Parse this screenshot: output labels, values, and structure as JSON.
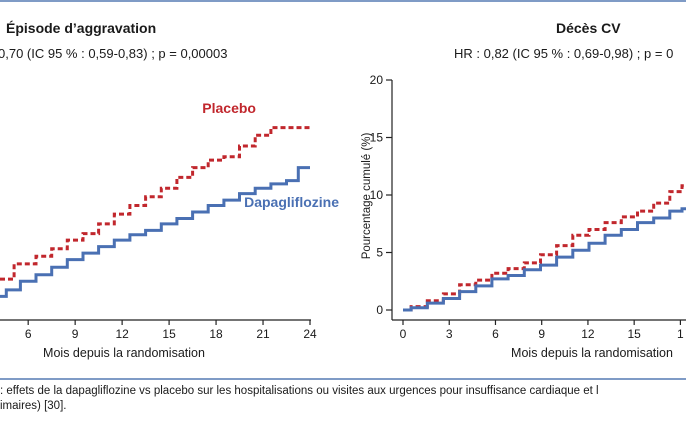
{
  "left_panel": {
    "title": "Épisode d’aggravation",
    "stat": "0,70 (IC 95 % : 0,59-0,83) ; p = 0,00003"
  },
  "right_panel": {
    "title": "Décès CV",
    "stat": "HR : 0,82 (IC 95 % : 0,69-0,98) ; p = 0"
  },
  "caption": {
    "line1": ": effets de la dapagliflozine vs placebo sur les hospitalisations ou visites aux urgences pour insuffisance cardiaque et l",
    "line2": "imaires) [30]."
  },
  "colors": {
    "placebo": "#c1272d",
    "dapagliflozine": "#4a70b3",
    "rule": "#7f9bc6"
  },
  "chart_data": [
    {
      "type": "line",
      "title": "Épisode d’aggravation",
      "xlabel": "Mois depuis la randomisation",
      "ylabel": "",
      "x_ticks": [
        "6",
        "9",
        "12",
        "15",
        "18",
        "21",
        "24"
      ],
      "xlim": [
        4.2,
        24
      ],
      "ylim": [
        0,
        22
      ],
      "grid": false,
      "series": [
        {
          "name": "Placebo",
          "color": "#c1272d",
          "style": "dashed",
          "x": [
            4.2,
            6,
            7,
            8,
            9,
            10,
            11,
            12,
            13,
            14,
            15,
            16,
            17,
            18,
            19,
            20,
            21,
            22,
            23,
            24
          ],
          "y": [
            3.6,
            5.0,
            5.7,
            6.4,
            7.2,
            7.8,
            8.7,
            9.6,
            10.4,
            11.2,
            12.0,
            13.0,
            13.9,
            14.6,
            14.9,
            15.9,
            16.9,
            17.6,
            17.6,
            17.6
          ]
        },
        {
          "name": "Dapagliflozine",
          "color": "#4a70b3",
          "style": "solid",
          "x": [
            4.2,
            5,
            6,
            7,
            8,
            9,
            10,
            11,
            12,
            13,
            14,
            15,
            16,
            17,
            18,
            19,
            20,
            21,
            22,
            23,
            23.5,
            24
          ],
          "y": [
            2.0,
            2.6,
            3.4,
            4.0,
            4.7,
            5.4,
            6.0,
            6.6,
            7.2,
            7.7,
            8.1,
            8.7,
            9.2,
            9.8,
            10.4,
            10.9,
            11.5,
            12.0,
            12.4,
            12.7,
            13.9,
            13.9
          ]
        }
      ]
    },
    {
      "type": "line",
      "title": "Décès CV",
      "xlabel": "Mois depuis la randomisation",
      "ylabel": "Pourcentage cumulé (%)",
      "x_ticks": [
        "0",
        "3",
        "6",
        "9",
        "12",
        "15",
        "1"
      ],
      "y_ticks": [
        "0",
        "5",
        "10",
        "15",
        "20"
      ],
      "xlim": [
        0,
        17.5
      ],
      "ylim": [
        0,
        20
      ],
      "grid": false,
      "series": [
        {
          "name": "Placebo",
          "color": "#c1272d",
          "style": "dashed",
          "x": [
            0,
            1,
            2,
            3,
            4,
            5,
            6,
            7,
            8,
            9,
            10,
            11,
            12,
            13,
            14,
            15,
            16,
            17,
            17.5
          ],
          "y": [
            0,
            0.3,
            0.8,
            1.4,
            2.2,
            2.6,
            3.2,
            3.6,
            4.1,
            4.8,
            5.6,
            6.5,
            7.0,
            7.6,
            8.1,
            8.6,
            9.3,
            10.3,
            10.8
          ]
        },
        {
          "name": "Dapagliflozine",
          "color": "#4a70b3",
          "style": "solid",
          "x": [
            0,
            1,
            2,
            3,
            4,
            5,
            6,
            7,
            8,
            9,
            10,
            11,
            12,
            13,
            14,
            15,
            16,
            17,
            17.5
          ],
          "y": [
            0,
            0.2,
            0.6,
            1.0,
            1.6,
            2.1,
            2.7,
            3.0,
            3.5,
            3.9,
            4.6,
            5.2,
            5.8,
            6.5,
            7.0,
            7.6,
            8.0,
            8.6,
            8.8
          ]
        }
      ]
    }
  ]
}
